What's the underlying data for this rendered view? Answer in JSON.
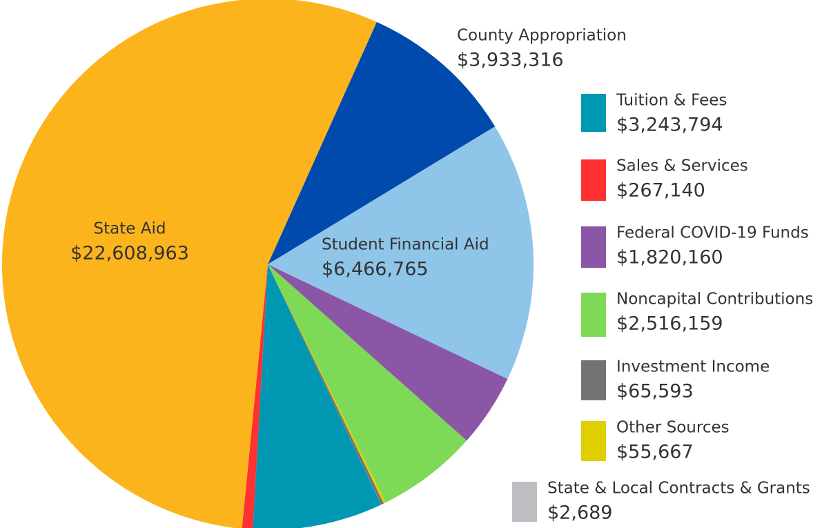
{
  "chart_data": {
    "type": "pie",
    "categories": [
      "County Appropriation",
      "Student Financial Aid",
      "Federal COVID-19 Funds",
      "Noncapital Contributions",
      "Other Sources",
      "Investment Income",
      "State & Local Contracts & Grants",
      "Tuition & Fees",
      "Sales & Services",
      "State Aid"
    ],
    "values": [
      3933316,
      6466765,
      1820160,
      2516159,
      55667,
      65593,
      2689,
      3243794,
      267140,
      22608963
    ],
    "value_labels": [
      "$3,933,316",
      "$6,466,765",
      "$1,820,160",
      "$2,516,159",
      "$55,667",
      "$65,593",
      "$2,689",
      "$3,243,794",
      "$267,140",
      "$22,608,963"
    ],
    "colors": [
      "#004aad",
      "#8ec5e8",
      "#8a56a5",
      "#7ed957",
      "#e0cf00",
      "#737373",
      "#bdbec2",
      "#0097b2",
      "#ff3131",
      "#fcb41c"
    ]
  }
}
